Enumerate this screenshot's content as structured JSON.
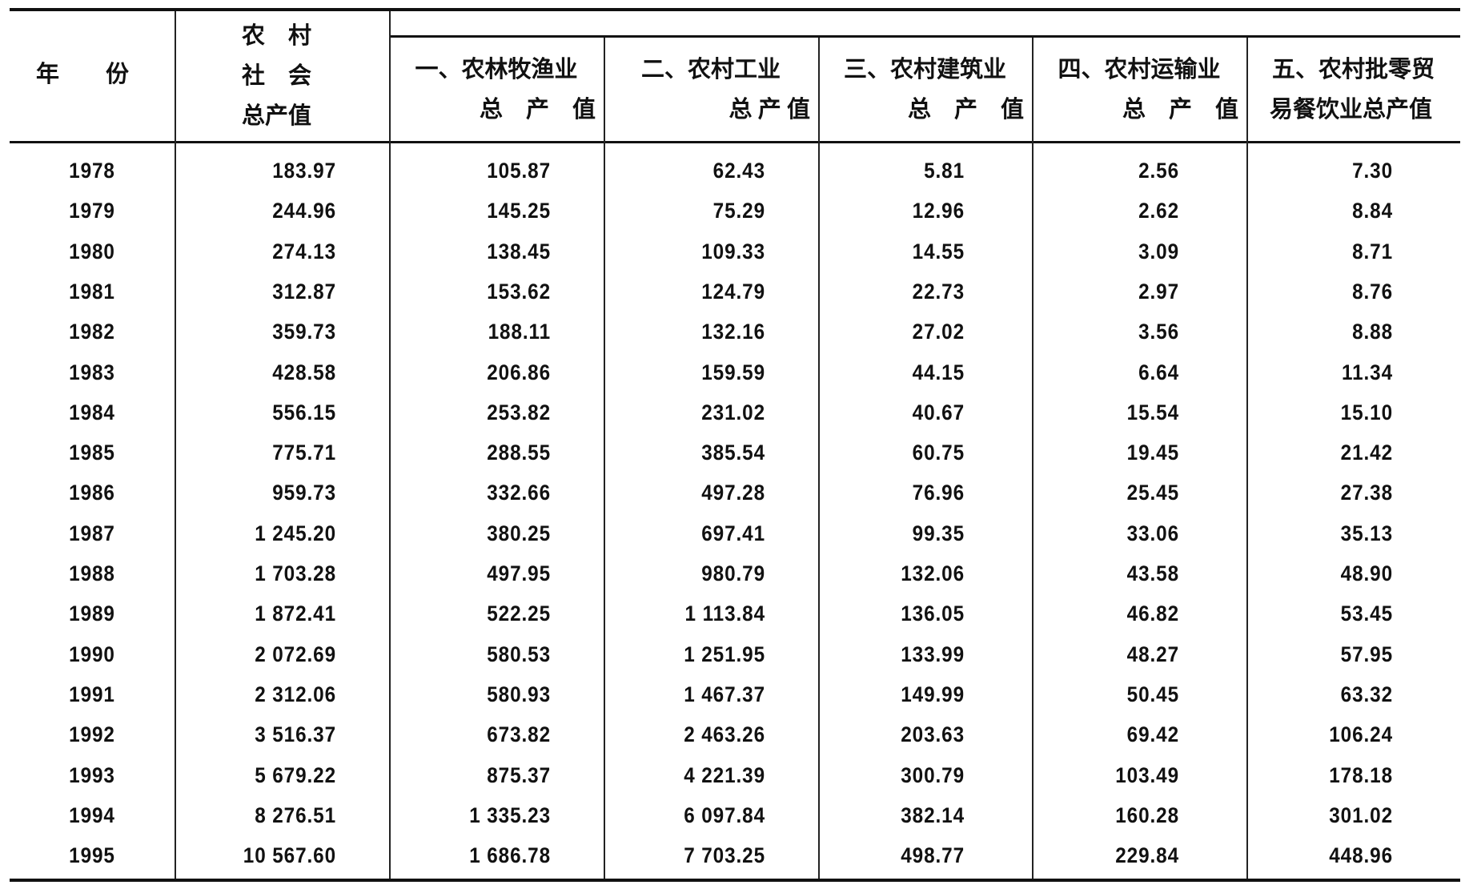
{
  "header": {
    "year": "年　　份",
    "total": [
      "农　村",
      "社　会",
      "总产值"
    ],
    "columns": [
      [
        "一、农林牧渔业",
        "总　产　值"
      ],
      [
        "二、农村工业",
        "总 产 值"
      ],
      [
        "三、农村建筑业",
        "总　产　值"
      ],
      [
        "四、农村运输业",
        "总　产　值"
      ],
      [
        "五、农村批零贸",
        "易餐饮业总产值"
      ]
    ]
  },
  "rows": [
    [
      "1978",
      "183.97",
      "105.87",
      "62.43",
      "5.81",
      "2.56",
      "7.30"
    ],
    [
      "1979",
      "244.96",
      "145.25",
      "75.29",
      "12.96",
      "2.62",
      "8.84"
    ],
    [
      "1980",
      "274.13",
      "138.45",
      "109.33",
      "14.55",
      "3.09",
      "8.71"
    ],
    [
      "1981",
      "312.87",
      "153.62",
      "124.79",
      "22.73",
      "2.97",
      "8.76"
    ],
    [
      "1982",
      "359.73",
      "188.11",
      "132.16",
      "27.02",
      "3.56",
      "8.88"
    ],
    [
      "1983",
      "428.58",
      "206.86",
      "159.59",
      "44.15",
      "6.64",
      "11.34"
    ],
    [
      "1984",
      "556.15",
      "253.82",
      "231.02",
      "40.67",
      "15.54",
      "15.10"
    ],
    [
      "1985",
      "775.71",
      "288.55",
      "385.54",
      "60.75",
      "19.45",
      "21.42"
    ],
    [
      "1986",
      "959.73",
      "332.66",
      "497.28",
      "76.96",
      "25.45",
      "27.38"
    ],
    [
      "1987",
      "1 245.20",
      "380.25",
      "697.41",
      "99.35",
      "33.06",
      "35.13"
    ],
    [
      "1988",
      "1 703.28",
      "497.95",
      "980.79",
      "132.06",
      "43.58",
      "48.90"
    ],
    [
      "1989",
      "1 872.41",
      "522.25",
      "1 113.84",
      "136.05",
      "46.82",
      "53.45"
    ],
    [
      "1990",
      "2 072.69",
      "580.53",
      "1 251.95",
      "133.99",
      "48.27",
      "57.95"
    ],
    [
      "1991",
      "2 312.06",
      "580.93",
      "1 467.37",
      "149.99",
      "50.45",
      "63.32"
    ],
    [
      "1992",
      "3 516.37",
      "673.82",
      "2 463.26",
      "203.63",
      "69.42",
      "106.24"
    ],
    [
      "1993",
      "5 679.22",
      "875.37",
      "4 221.39",
      "300.79",
      "103.49",
      "178.18"
    ],
    [
      "1994",
      "8 276.51",
      "1 335.23",
      "6 097.84",
      "382.14",
      "160.28",
      "301.02"
    ],
    [
      "1995",
      "10 567.60",
      "1 686.78",
      "7 703.25",
      "498.77",
      "229.84",
      "448.96"
    ]
  ]
}
